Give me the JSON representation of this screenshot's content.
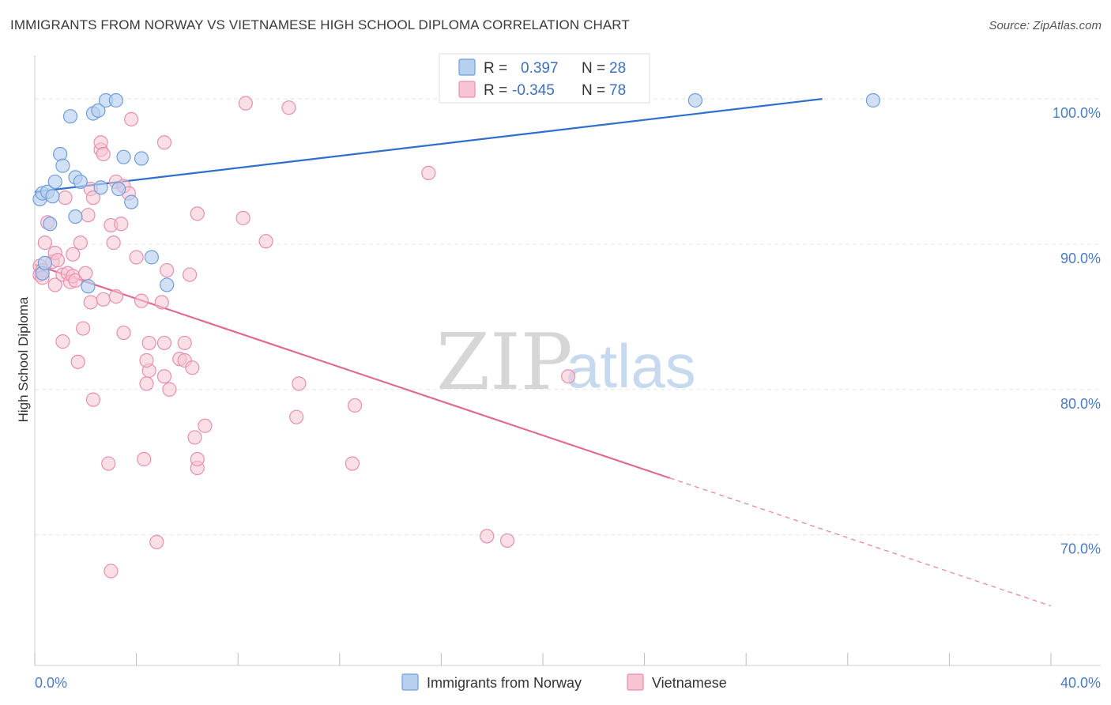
{
  "title": "IMMIGRANTS FROM NORWAY VS VIETNAMESE HIGH SCHOOL DIPLOMA CORRELATION CHART",
  "source": "Source: ZipAtlas.com",
  "watermark": {
    "zip": "ZIP",
    "atlas": "atlas"
  },
  "colors": {
    "norway_fill": "#b8d0f0",
    "norway_stroke": "#6f9fdc",
    "norway_line": "#2f6fcc",
    "viet_fill": "#f7c4d4",
    "viet_stroke": "#e88fae",
    "viet_line": "#e06a96",
    "axis_text": "#4a7cc7",
    "grid": "#e6e6e6"
  },
  "legend": {
    "r_label": "R =",
    "n_label": "N =",
    "rows": [
      {
        "r": "0.397",
        "n": "28"
      },
      {
        "r": "-0.345",
        "n": "78"
      }
    ]
  },
  "chart_data": {
    "type": "scatter",
    "title": "IMMIGRANTS FROM NORWAY VS VIETNAMESE HIGH SCHOOL DIPLOMA CORRELATION CHART",
    "xlabel": "",
    "ylabel": "High School Diploma",
    "xlim": [
      0,
      40
    ],
    "ylim": [
      61,
      103
    ],
    "x_tick_labels": [
      "0.0%",
      "40.0%"
    ],
    "y_ticks": [
      70,
      80,
      90,
      100
    ],
    "y_tick_labels": [
      "70.0%",
      "80.0%",
      "90.0%",
      "100.0%"
    ],
    "grid": true,
    "legend_position": "top-center",
    "series": [
      {
        "name": "Immigrants from Norway",
        "r": 0.397,
        "n": 28,
        "trend": {
          "x0": 0,
          "y0": 93.6,
          "x1": 31,
          "y1": 100
        },
        "points": [
          [
            0.2,
            93.1
          ],
          [
            0.3,
            93.5
          ],
          [
            0.5,
            93.6
          ],
          [
            0.8,
            94.3
          ],
          [
            0.7,
            93.3
          ],
          [
            0.6,
            91.4
          ],
          [
            1.0,
            96.2
          ],
          [
            1.1,
            95.4
          ],
          [
            1.4,
            98.8
          ],
          [
            1.6,
            94.6
          ],
          [
            1.8,
            94.3
          ],
          [
            1.6,
            91.9
          ],
          [
            2.3,
            99.0
          ],
          [
            2.5,
            99.2
          ],
          [
            2.6,
            93.9
          ],
          [
            2.1,
            87.1
          ],
          [
            2.8,
            99.9
          ],
          [
            3.2,
            99.9
          ],
          [
            3.5,
            96.0
          ],
          [
            3.3,
            93.8
          ],
          [
            3.8,
            92.9
          ],
          [
            4.2,
            95.9
          ],
          [
            4.6,
            89.1
          ],
          [
            5.2,
            87.2
          ],
          [
            26.0,
            99.9
          ],
          [
            33.0,
            99.9
          ],
          [
            0.3,
            88.0
          ],
          [
            0.4,
            88.7
          ]
        ]
      },
      {
        "name": "Vietnamese",
        "r": -0.345,
        "n": 78,
        "trend": {
          "x0": 0,
          "y0": 88.6,
          "x1": 25,
          "y1": 73.9,
          "x_dash_end": 40,
          "y_dash_end": 65.1
        },
        "points": [
          [
            0.2,
            88.5
          ],
          [
            0.2,
            87.9
          ],
          [
            0.3,
            88.2
          ],
          [
            0.3,
            87.7
          ],
          [
            0.4,
            90.1
          ],
          [
            0.5,
            91.5
          ],
          [
            0.7,
            88.8
          ],
          [
            0.8,
            89.4
          ],
          [
            0.8,
            87.2
          ],
          [
            0.9,
            88.9
          ],
          [
            1.1,
            87.9
          ],
          [
            1.2,
            93.2
          ],
          [
            1.3,
            88.0
          ],
          [
            1.4,
            87.4
          ],
          [
            1.5,
            87.8
          ],
          [
            1.5,
            89.3
          ],
          [
            1.6,
            87.5
          ],
          [
            1.8,
            90.1
          ],
          [
            1.9,
            84.2
          ],
          [
            2.0,
            88.0
          ],
          [
            2.1,
            92.0
          ],
          [
            2.2,
            93.8
          ],
          [
            2.3,
            93.2
          ],
          [
            2.2,
            86.0
          ],
          [
            2.6,
            96.5
          ],
          [
            2.6,
            97.0
          ],
          [
            2.7,
            96.2
          ],
          [
            2.7,
            86.2
          ],
          [
            3.0,
            91.3
          ],
          [
            3.1,
            90.1
          ],
          [
            3.2,
            86.4
          ],
          [
            3.2,
            94.3
          ],
          [
            3.4,
            91.4
          ],
          [
            3.5,
            94.0
          ],
          [
            3.7,
            93.5
          ],
          [
            3.8,
            98.6
          ],
          [
            4.0,
            89.1
          ],
          [
            4.2,
            86.1
          ],
          [
            5.0,
            86.0
          ],
          [
            5.1,
            97.0
          ],
          [
            5.2,
            88.2
          ],
          [
            6.1,
            87.9
          ],
          [
            6.4,
            92.1
          ],
          [
            8.2,
            91.8
          ],
          [
            8.3,
            99.7
          ],
          [
            9.1,
            90.2
          ],
          [
            10.0,
            99.4
          ],
          [
            15.5,
            94.9
          ],
          [
            1.1,
            83.3
          ],
          [
            1.7,
            81.9
          ],
          [
            2.3,
            79.3
          ],
          [
            2.9,
            74.9
          ],
          [
            3.5,
            83.9
          ],
          [
            3.0,
            67.5
          ],
          [
            4.3,
            75.2
          ],
          [
            4.4,
            80.4
          ],
          [
            4.5,
            81.3
          ],
          [
            4.4,
            82.0
          ],
          [
            4.5,
            83.2
          ],
          [
            4.8,
            69.5
          ],
          [
            5.1,
            80.9
          ],
          [
            5.1,
            83.2
          ],
          [
            5.3,
            80.0
          ],
          [
            5.7,
            82.1
          ],
          [
            5.9,
            82.0
          ],
          [
            5.9,
            83.2
          ],
          [
            6.2,
            81.5
          ],
          [
            6.3,
            76.7
          ],
          [
            6.4,
            74.6
          ],
          [
            6.4,
            75.2
          ],
          [
            6.7,
            77.5
          ],
          [
            10.3,
            78.1
          ],
          [
            10.4,
            80.4
          ],
          [
            12.5,
            74.9
          ],
          [
            12.6,
            78.9
          ],
          [
            17.8,
            69.9
          ],
          [
            18.6,
            69.6
          ],
          [
            21.0,
            80.9
          ]
        ]
      }
    ]
  }
}
